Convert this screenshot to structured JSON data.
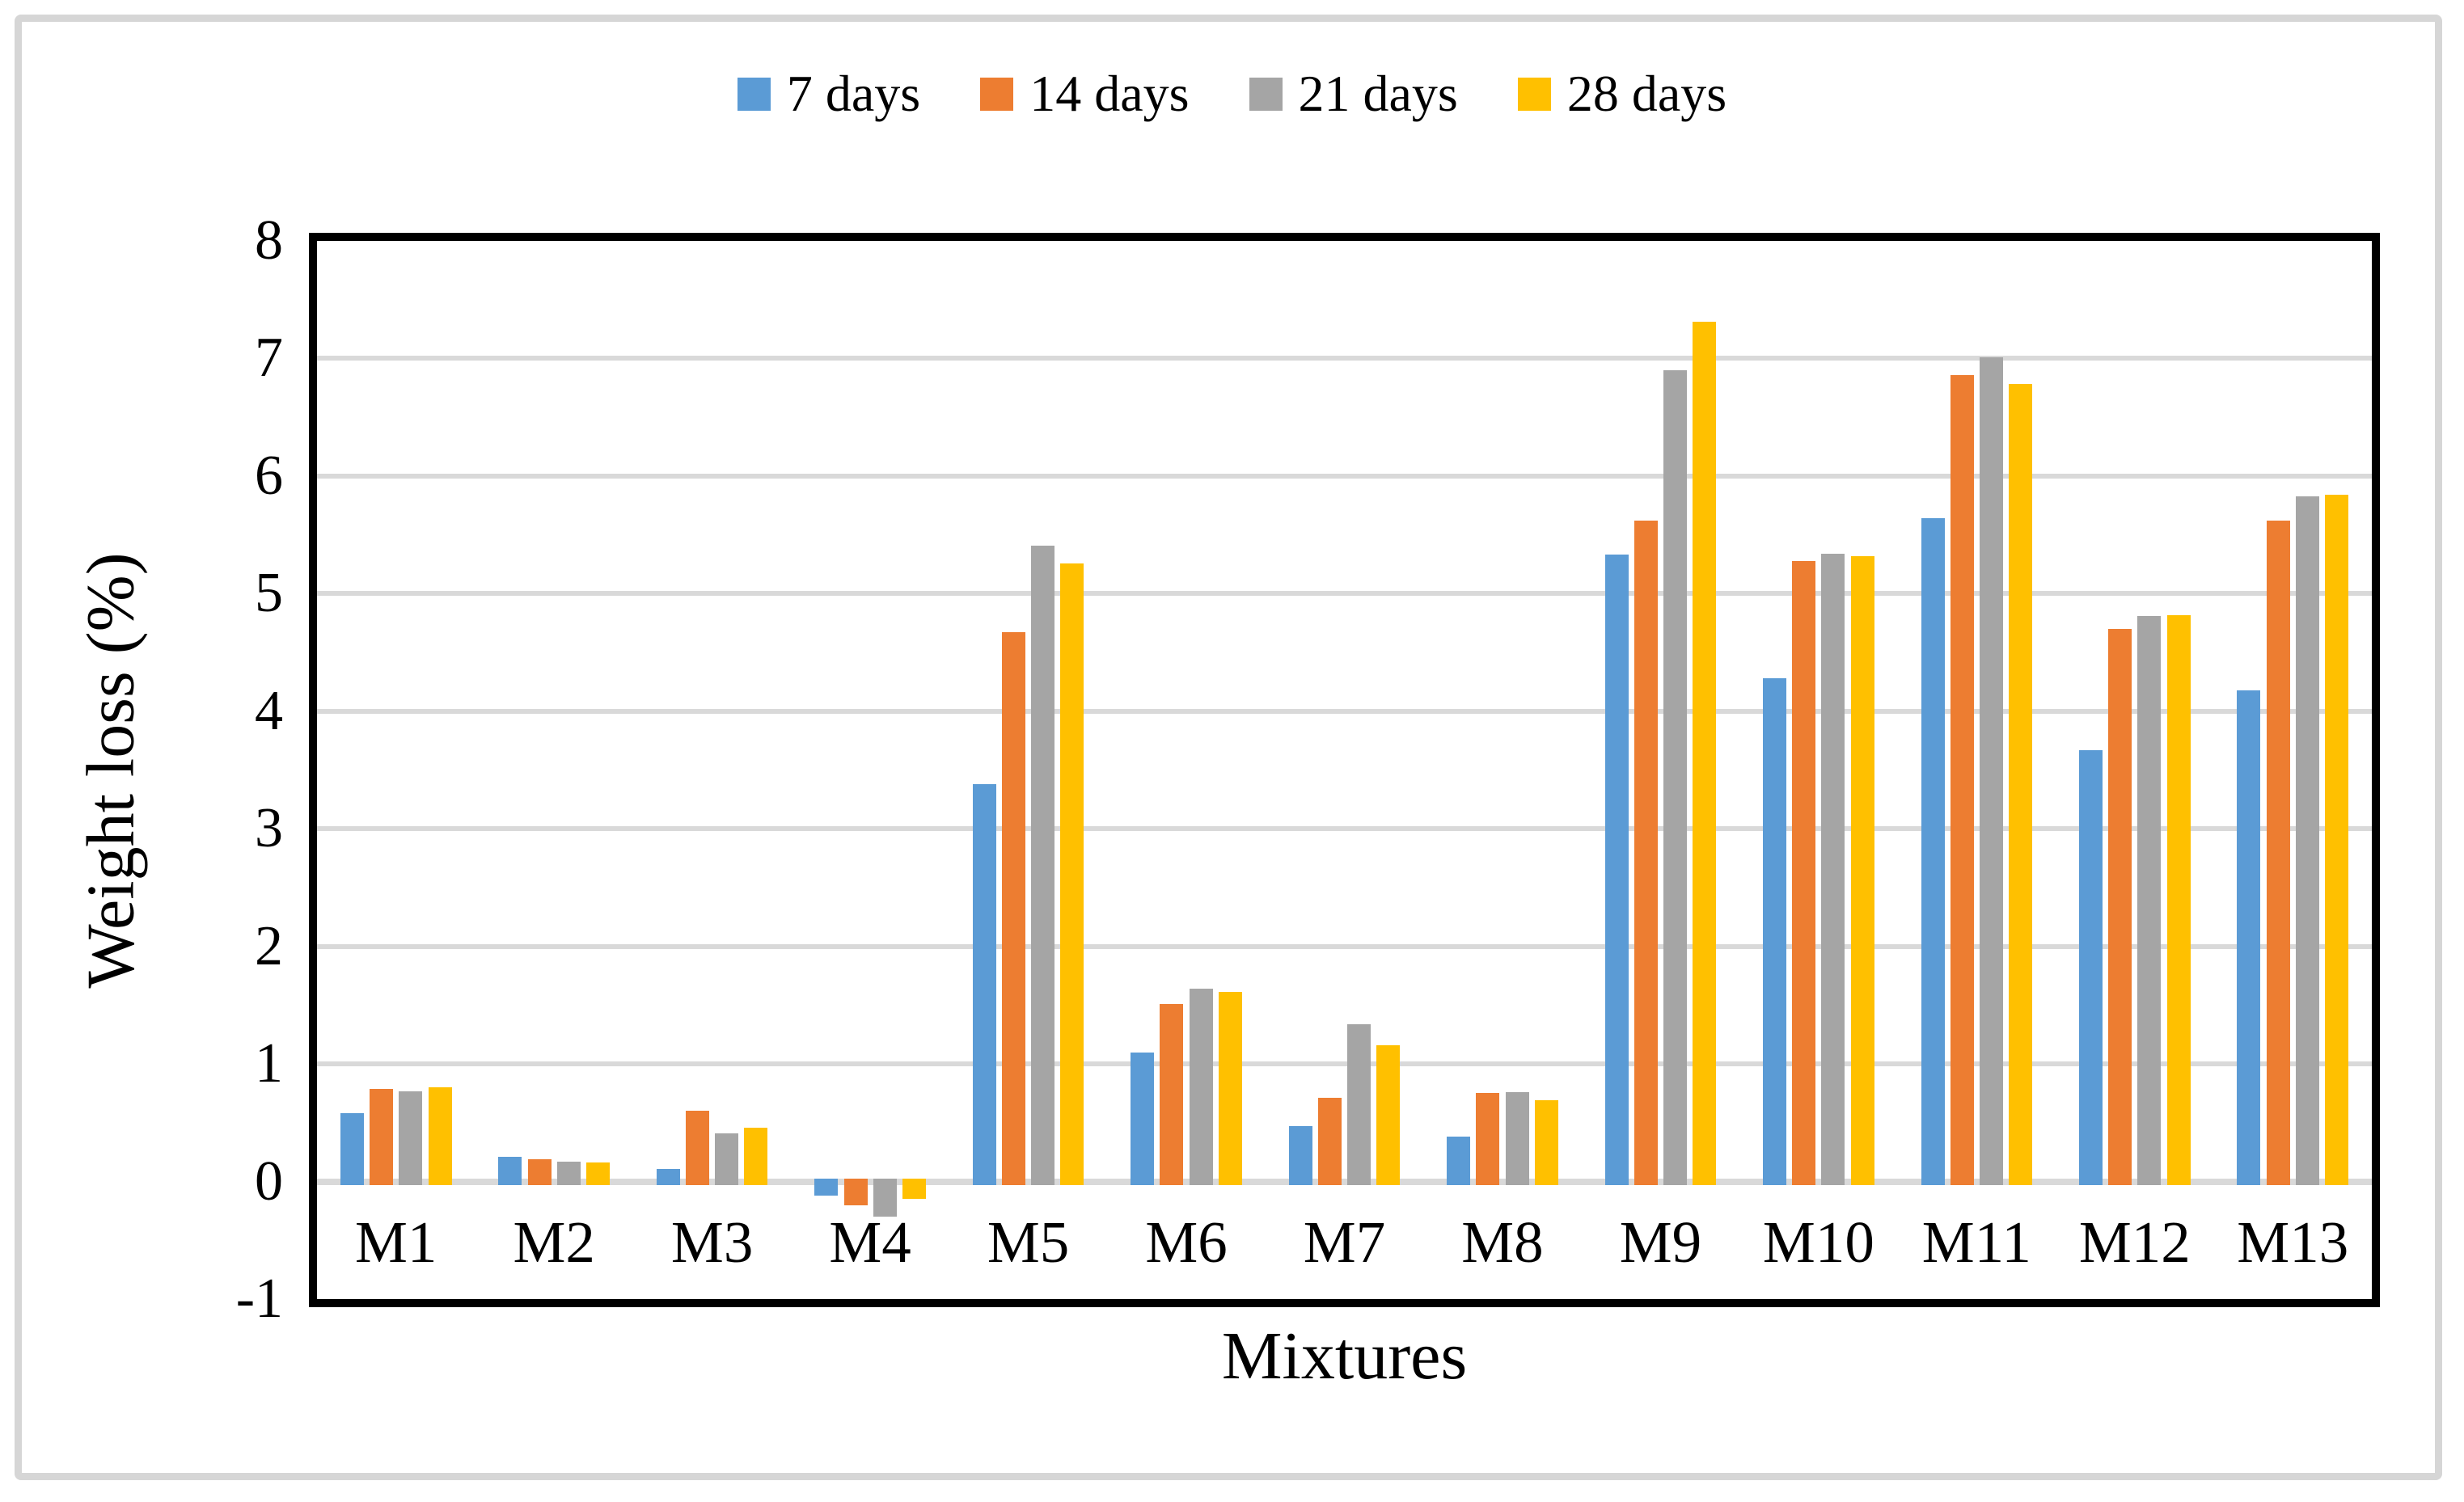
{
  "figure": {
    "background": "#ffffff",
    "frame_color": "#d6d6d6",
    "plot_border_color": "#000000",
    "gridline_color": "#d9d9d9"
  },
  "chart_data": {
    "type": "bar",
    "title": "",
    "xlabel": "Mixtures",
    "ylabel": "Weight loss (%)",
    "ylim": [
      -1,
      8
    ],
    "ytick_step": 1,
    "yticks": [
      8,
      7,
      6,
      5,
      4,
      3,
      2,
      1,
      0,
      -1
    ],
    "grid": true,
    "legend_position": "top",
    "categories": [
      "M1",
      "M2",
      "M3",
      "M4",
      "M5",
      "M6",
      "M7",
      "M8",
      "M9",
      "M10",
      "M11",
      "M12",
      "M13"
    ],
    "series": [
      {
        "name": "7 days",
        "color": "#5B9BD5",
        "values": [
          0.58,
          0.21,
          0.11,
          -0.12,
          3.38,
          1.1,
          0.47,
          0.38,
          5.33,
          4.28,
          5.64,
          3.67,
          4.18
        ]
      },
      {
        "name": "14 days",
        "color": "#ED7D31",
        "values": [
          0.79,
          0.19,
          0.6,
          -0.2,
          4.67,
          1.51,
          0.71,
          0.75,
          5.62,
          5.28,
          6.86,
          4.7,
          5.62
        ]
      },
      {
        "name": "21 days",
        "color": "#A5A5A5",
        "values": [
          0.77,
          0.17,
          0.41,
          -0.3,
          5.41,
          1.64,
          1.34,
          0.76,
          6.9,
          5.34,
          7.01,
          4.81,
          5.83
        ]
      },
      {
        "name": "28 days",
        "color": "#FFC000",
        "values": [
          0.8,
          0.16,
          0.46,
          -0.15,
          5.26,
          1.61,
          1.16,
          0.69,
          7.31,
          5.32,
          6.78,
          4.82,
          5.84
        ]
      }
    ]
  }
}
